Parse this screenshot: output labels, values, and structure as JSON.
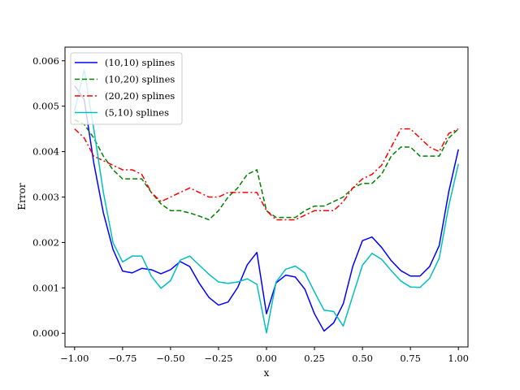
{
  "chart_data": {
    "type": "line",
    "title": "",
    "xlabel": "x",
    "ylabel": "Error",
    "xlim": [
      -1.05,
      1.05
    ],
    "ylim": [
      -0.0003,
      0.0063
    ],
    "xticks": [
      -1.0,
      -0.75,
      -0.5,
      -0.25,
      0.0,
      0.25,
      0.5,
      0.75,
      1.0
    ],
    "xtick_labels": [
      "−1.00",
      "−0.75",
      "−0.50",
      "−0.25",
      "0.00",
      "0.25",
      "0.50",
      "0.75",
      "1.00"
    ],
    "yticks": [
      0.0,
      0.001,
      0.002,
      0.003,
      0.004,
      0.005,
      0.006
    ],
    "ytick_labels": [
      "0.000",
      "0.001",
      "0.002",
      "0.003",
      "0.004",
      "0.005",
      "0.006"
    ],
    "grid": false,
    "legend_position": "top-left",
    "x": [
      -1.0,
      -0.95,
      -0.9,
      -0.85,
      -0.8,
      -0.75,
      -0.7,
      -0.65,
      -0.6,
      -0.55,
      -0.5,
      -0.45,
      -0.4,
      -0.35,
      -0.3,
      -0.25,
      -0.2,
      -0.15,
      -0.1,
      -0.05,
      0.0,
      0.05,
      0.1,
      0.15,
      0.2,
      0.25,
      0.3,
      0.35,
      0.4,
      0.45,
      0.5,
      0.55,
      0.6,
      0.65,
      0.7,
      0.75,
      0.8,
      0.85,
      0.9,
      0.95,
      1.0
    ],
    "series": [
      {
        "name": "(10,10) splines",
        "color": "#0000ff",
        "style": "solid",
        "values": [
          0.00545,
          0.00515,
          0.00375,
          0.00265,
          0.00185,
          0.00137,
          0.00133,
          0.00143,
          0.0014,
          0.00131,
          0.0014,
          0.00158,
          0.00147,
          0.0011,
          0.00079,
          0.00062,
          0.00069,
          0.00101,
          0.00151,
          0.00178,
          0.00043,
          0.00111,
          0.00128,
          0.00124,
          0.00097,
          0.00043,
          5e-05,
          0.00023,
          0.00065,
          0.00148,
          0.00204,
          0.00212,
          0.00189,
          0.0016,
          0.00138,
          0.00126,
          0.00126,
          0.00147,
          0.00193,
          0.00312,
          0.00405
        ]
      },
      {
        "name": "(10,20) splines",
        "color": "#008000",
        "style": "dashed",
        "values": [
          0.0047,
          0.0046,
          0.0043,
          0.0039,
          0.0036,
          0.0034,
          0.0034,
          0.0034,
          0.0031,
          0.00285,
          0.0027,
          0.0027,
          0.00265,
          0.00258,
          0.0025,
          0.0027,
          0.003,
          0.0032,
          0.0035,
          0.0036,
          0.0027,
          0.00255,
          0.00255,
          0.00255,
          0.0027,
          0.0028,
          0.0028,
          0.0029,
          0.003,
          0.0032,
          0.0033,
          0.0033,
          0.0035,
          0.0039,
          0.0041,
          0.0041,
          0.0039,
          0.0039,
          0.0039,
          0.0043,
          0.0045
        ]
      },
      {
        "name": "(20,20) splines",
        "color": "#ff0000",
        "style": "dashdot",
        "values": [
          0.0045,
          0.0043,
          0.0039,
          0.0038,
          0.0037,
          0.0036,
          0.0036,
          0.0035,
          0.0031,
          0.0029,
          0.003,
          0.0031,
          0.0032,
          0.0031,
          0.003,
          0.003,
          0.0031,
          0.0031,
          0.0031,
          0.0031,
          0.0027,
          0.0025,
          0.0025,
          0.0025,
          0.0026,
          0.0027,
          0.0027,
          0.0027,
          0.0029,
          0.0032,
          0.0034,
          0.0035,
          0.0037,
          0.0041,
          0.0045,
          0.0045,
          0.0043,
          0.0041,
          0.004,
          0.0044,
          0.0045
        ]
      },
      {
        "name": "(5,10) splines",
        "color": "#00bfbf",
        "style": "solid",
        "values": [
          0.0049,
          0.0058,
          0.0045,
          0.0031,
          0.002,
          0.00157,
          0.0017,
          0.0017,
          0.00126,
          0.00099,
          0.00116,
          0.00161,
          0.0017,
          0.0015,
          0.0013,
          0.00113,
          0.0011,
          0.00113,
          0.0012,
          0.00108,
          1e-05,
          0.00113,
          0.00141,
          0.00148,
          0.00133,
          0.00091,
          0.00051,
          0.00048,
          0.00016,
          0.00083,
          0.0015,
          0.00176,
          0.00163,
          0.00138,
          0.00115,
          0.00102,
          0.00101,
          0.00121,
          0.00165,
          0.00281,
          0.00373
        ]
      }
    ]
  }
}
